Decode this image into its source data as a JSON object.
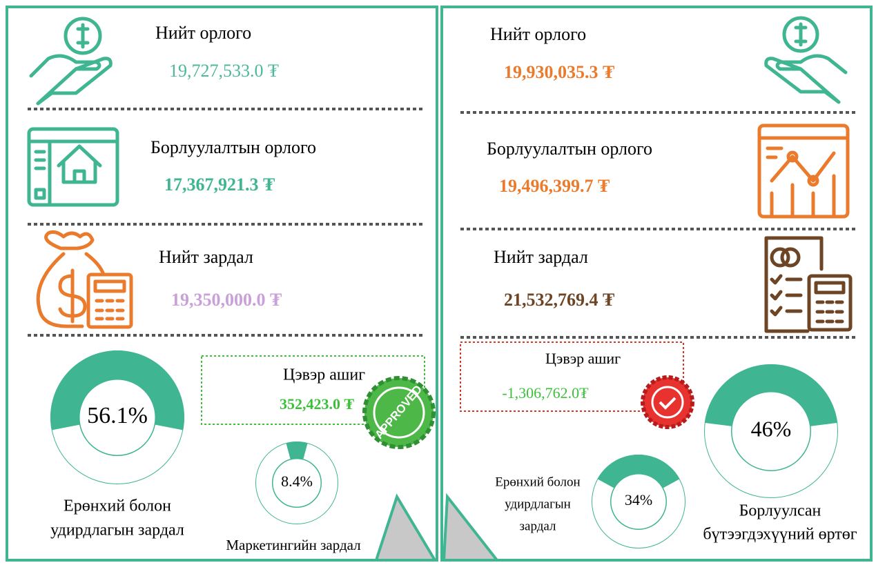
{
  "left": {
    "items": [
      {
        "label": "Нийт орлого",
        "value": "19,727,533.0 ₮"
      },
      {
        "label": "Борлуулалтын орлого",
        "value": "17,367,921.3 ₮"
      },
      {
        "label": "Нийт зардал",
        "value": "19,350,000.0 ₮"
      }
    ],
    "profit": {
      "label": "Цэвэр ашиг",
      "value": "352,423.0 ₮"
    },
    "stamp": "APPROVED",
    "gauges": [
      {
        "value": 56.1,
        "label": "56.1%",
        "name": [
          "Ерөнхий болон",
          "удирдлагын зардал"
        ]
      },
      {
        "value": 8.4,
        "label": "8.4%",
        "name": [
          "Маркетингийн зардал"
        ]
      }
    ]
  },
  "right": {
    "items": [
      {
        "label": "Нийт орлого",
        "value": "19,930,035.3 ₮"
      },
      {
        "label": "Борлуулалтын орлого",
        "value": "19,496,399.7 ₮"
      },
      {
        "label": "Нийт зардал",
        "value": "21,532,769.4 ₮"
      }
    ],
    "profit": {
      "label": "Цэвэр ашиг",
      "value": "-1,306,762.0₮"
    },
    "gauges": [
      {
        "value": 34,
        "label": "34%",
        "name": [
          "Ерөнхий болон",
          "удирдлагын",
          "зардал"
        ]
      },
      {
        "value": 46,
        "label": "46%",
        "name": [
          "Борлуулсан",
          "бүтээгдэхүүний өртөг"
        ]
      }
    ]
  }
}
